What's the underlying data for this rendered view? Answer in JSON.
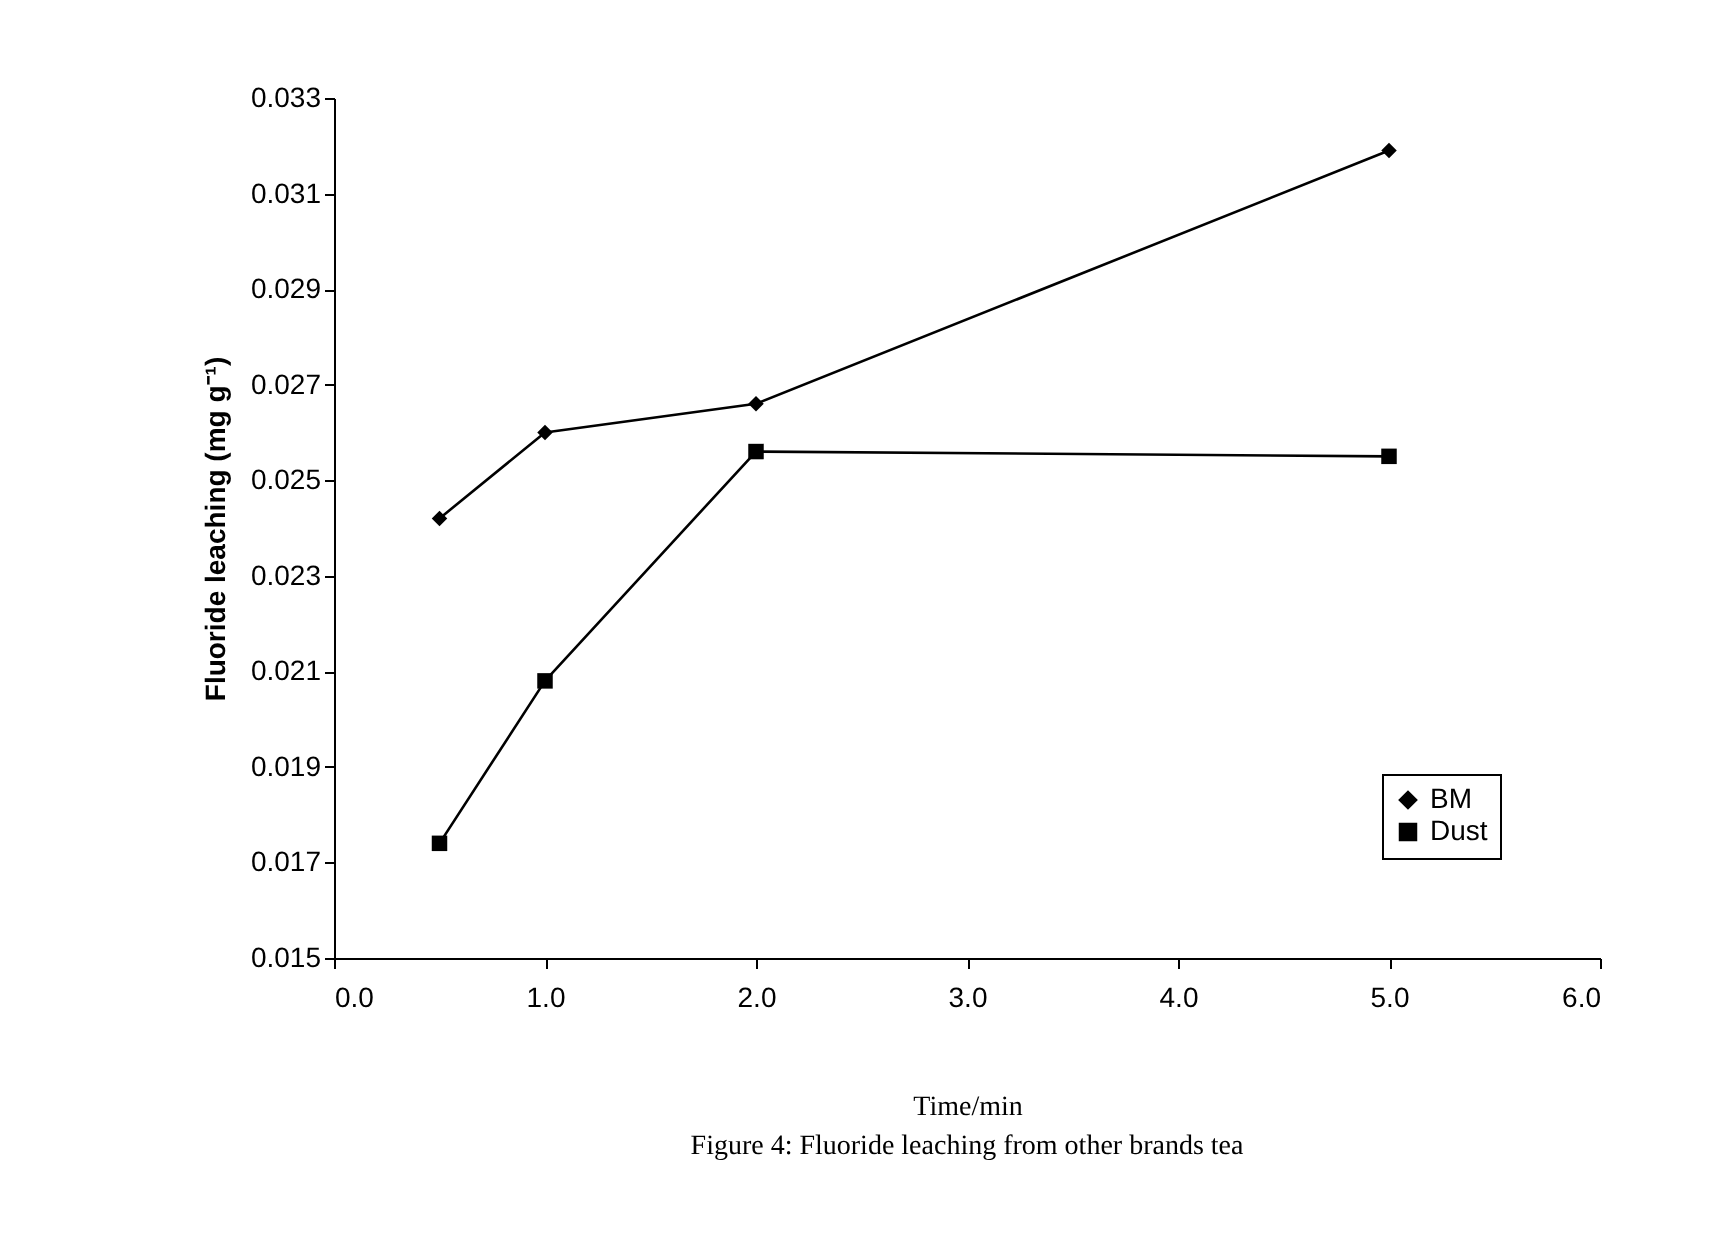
{
  "chart_data": {
    "type": "line",
    "title": "Figure 4: Fluoride leaching from other brands tea",
    "xlabel": "Time/min",
    "ylabel": "Fluoride leaching (mg g⁻¹)",
    "x": [
      0.5,
      1.0,
      2.0,
      5.0
    ],
    "series": [
      {
        "name": "BM",
        "color": "#000000",
        "marker": "diamond",
        "values": [
          0.0242,
          0.026,
          0.0266,
          0.0319
        ]
      },
      {
        "name": "Dust",
        "color": "#000000",
        "marker": "square",
        "values": [
          0.0174,
          0.0208,
          0.0256,
          0.0255
        ]
      }
    ],
    "xlim": [
      0,
      6
    ],
    "xticks": [
      {
        "value": 0,
        "label": "0.0"
      },
      {
        "value": 1,
        "label": "1.0"
      },
      {
        "value": 2,
        "label": "2.0"
      },
      {
        "value": 3,
        "label": "3.0"
      },
      {
        "value": 4,
        "label": "4.0"
      },
      {
        "value": 5,
        "label": "5.0"
      },
      {
        "value": 6,
        "label": "6.0"
      }
    ],
    "ylim": [
      0.015,
      0.033
    ],
    "yticks": [
      0.015,
      0.017,
      0.019,
      0.021,
      0.023,
      0.025,
      0.027,
      0.029,
      0.031,
      0.033
    ],
    "legend": "bottom right",
    "grid": false,
    "line_style": "solid"
  }
}
